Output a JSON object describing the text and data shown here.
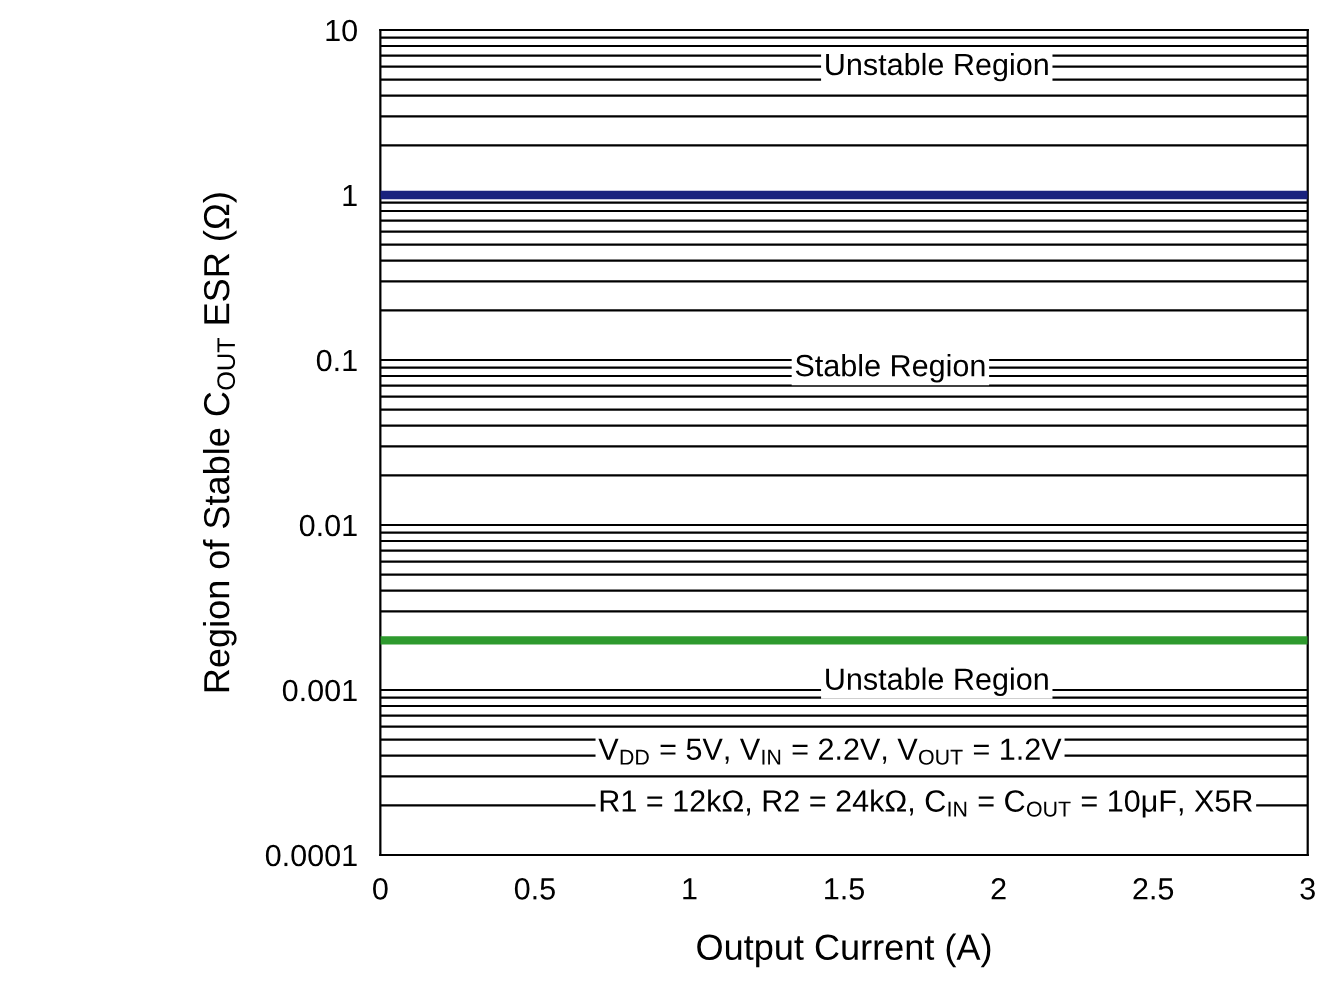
{
  "chart_data": {
    "type": "line",
    "xlabel": "Output Current (A)",
    "ylabel": "Region of Stable C$_{OUT}$ ESR (Ω)",
    "log": "y",
    "xlim": [
      0,
      3
    ],
    "xticks": [
      0,
      0.5,
      1,
      1.5,
      2,
      2.5,
      3
    ],
    "ylim": [
      0.0001,
      10
    ],
    "yticks": [
      0.0001,
      0.001,
      0.01,
      0.1,
      1,
      10
    ],
    "grid": "y",
    "ref_lines": [
      {
        "axis": "y",
        "value": 1,
        "color": "#1a237e",
        "line_style": "solid"
      },
      {
        "axis": "y",
        "value": 0.002,
        "color": "#2e9a2e",
        "line_style": "solid"
      }
    ],
    "annotations": [
      "Unstable Region",
      "Stable Region",
      "Unstable Region",
      "V$_{DD}$ = 5V, V$_{IN}$ = 2.2V, V$_{OUT}$ = 1.2V",
      "R1 = 12kΩ, R2 = 24kΩ, C$_{IN}$ = C$_{OUT}$ = 10μF, X5R"
    ]
  }
}
